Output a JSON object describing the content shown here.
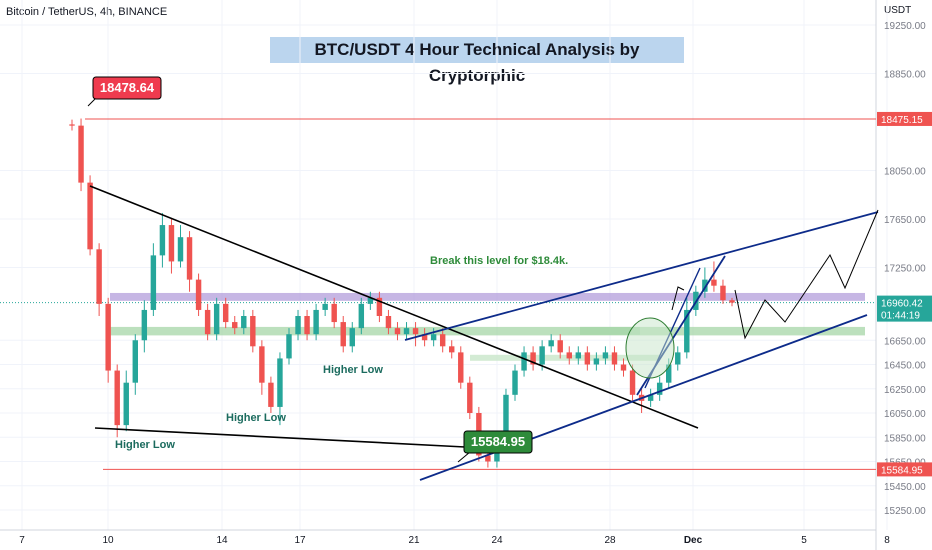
{
  "header": {
    "symbol": "Bitcoin / TetherUS, 4h, BINANCE",
    "currency": "USDT"
  },
  "chart_data": {
    "type": "candlestick",
    "title": "BTC/USDT 4 Hour Technical Analysis by Cryptorphic",
    "y_ticks": [
      19250,
      18850,
      18475.15,
      18050,
      17650,
      17250,
      16960.42,
      16650,
      16450,
      16250,
      16050,
      15850,
      15650,
      15584.95,
      15450,
      15250
    ],
    "y_tick_labels": [
      "19250.00",
      "18850.00",
      "18475.15",
      "18050.00",
      "17650.00",
      "17250.00",
      "16960.42",
      "16650.00",
      "16450.00",
      "16250.00",
      "16050.00",
      "15850.00",
      "15650.00",
      "15584.95",
      "15450.00",
      "15250.00"
    ],
    "ylim": [
      15050,
      19350
    ],
    "x_ticks": [
      "7",
      "10",
      "14",
      "17",
      "21",
      "24",
      "28",
      "Dec",
      "5",
      "8"
    ],
    "price_labels": {
      "resistance": "18475.15",
      "support": "15584.95",
      "current": "16960.42",
      "countdown": "01:44:19"
    },
    "callouts": {
      "high": "18478.64",
      "low": "15584.95"
    },
    "annotations": {
      "higher_low_1": "Higher Low",
      "higher_low_2": "Higher Low",
      "higher_low_3": "Higher Low",
      "break_level": "Break this level for $18.4k."
    },
    "levels": {
      "resistance": 18475.15,
      "support": 15584.95,
      "purple_zone": [
        16975,
        17040
      ],
      "green_zone": [
        16690,
        16760
      ],
      "current": 16960.42
    },
    "candles": [
      [
        18430,
        18420,
        18470,
        18380
      ],
      [
        18420,
        17950,
        18478.64,
        17880
      ],
      [
        17950,
        17400,
        18010,
        17350
      ],
      [
        17400,
        16950,
        17450,
        16850
      ],
      [
        16950,
        16400,
        17000,
        16300
      ],
      [
        16400,
        15950,
        16450,
        15850
      ],
      [
        15950,
        16300,
        16400,
        15900
      ],
      [
        16300,
        16650,
        16700,
        16200
      ],
      [
        16650,
        16900,
        16980,
        16550
      ],
      [
        16900,
        17350,
        17450,
        16850
      ],
      [
        17350,
        17600,
        17700,
        17250
      ],
      [
        17600,
        17300,
        17650,
        17200
      ],
      [
        17300,
        17500,
        17600,
        17250
      ],
      [
        17500,
        17150,
        17550,
        17050
      ],
      [
        17150,
        16900,
        17200,
        16850
      ],
      [
        16900,
        16700,
        16950,
        16650
      ],
      [
        16700,
        16950,
        17000,
        16650
      ],
      [
        16950,
        16800,
        17000,
        16750
      ],
      [
        16800,
        16750,
        16850,
        16700
      ],
      [
        16750,
        16850,
        16900,
        16700
      ],
      [
        16850,
        16600,
        16900,
        16550
      ],
      [
        16600,
        16300,
        16650,
        16200
      ],
      [
        16300,
        16100,
        16350,
        16050
      ],
      [
        16100,
        16500,
        16550,
        15950
      ],
      [
        16500,
        16700,
        16750,
        16450
      ],
      [
        16700,
        16850,
        16900,
        16650
      ],
      [
        16850,
        16700,
        16900,
        16650
      ],
      [
        16700,
        16900,
        16950,
        16650
      ],
      [
        16900,
        16950,
        17000,
        16850
      ],
      [
        16950,
        16800,
        17000,
        16750
      ],
      [
        16800,
        16600,
        16850,
        16550
      ],
      [
        16600,
        16750,
        16800,
        16550
      ],
      [
        16750,
        16950,
        17000,
        16700
      ],
      [
        16950,
        17000,
        17050,
        16900
      ],
      [
        17000,
        16850,
        17050,
        16800
      ],
      [
        16850,
        16750,
        16900,
        16700
      ],
      [
        16750,
        16700,
        16800,
        16650
      ],
      [
        16700,
        16750,
        16800,
        16650
      ],
      [
        16750,
        16700,
        16800,
        16600
      ],
      [
        16700,
        16650,
        16750,
        16600
      ],
      [
        16650,
        16700,
        16750,
        16600
      ],
      [
        16700,
        16600,
        16750,
        16550
      ],
      [
        16600,
        16550,
        16650,
        16500
      ],
      [
        16550,
        16300,
        16600,
        16250
      ],
      [
        16300,
        16050,
        16350,
        16000
      ],
      [
        16050,
        15700,
        16100,
        15650
      ],
      [
        15700,
        15650,
        15750,
        15600
      ],
      [
        15650,
        15800,
        15850,
        15600
      ],
      [
        15800,
        16200,
        16250,
        15750
      ],
      [
        16200,
        16400,
        16450,
        16150
      ],
      [
        16400,
        16550,
        16600,
        16350
      ],
      [
        16550,
        16450,
        16600,
        16400
      ],
      [
        16450,
        16600,
        16650,
        16400
      ],
      [
        16600,
        16650,
        16700,
        16550
      ],
      [
        16650,
        16550,
        16700,
        16500
      ],
      [
        16550,
        16500,
        16600,
        16450
      ],
      [
        16500,
        16550,
        16600,
        16450
      ],
      [
        16550,
        16450,
        16600,
        16400
      ],
      [
        16450,
        16500,
        16550,
        16400
      ],
      [
        16500,
        16550,
        16600,
        16450
      ],
      [
        16550,
        16450,
        16600,
        16400
      ],
      [
        16450,
        16400,
        16500,
        16350
      ],
      [
        16400,
        16200,
        16450,
        16150
      ],
      [
        16200,
        16150,
        16250,
        16050
      ],
      [
        16150,
        16200,
        16250,
        16100
      ],
      [
        16200,
        16300,
        16350,
        16150
      ],
      [
        16300,
        16450,
        16500,
        16250
      ],
      [
        16450,
        16550,
        16600,
        16400
      ],
      [
        16550,
        16900,
        17000,
        16500
      ],
      [
        16900,
        17050,
        17100,
        16850
      ],
      [
        17050,
        17150,
        17250,
        17000
      ],
      [
        17150,
        17100,
        17300,
        17050
      ],
      [
        17100,
        16980,
        17150,
        16950
      ],
      [
        16980,
        16960.42,
        17000,
        16930
      ]
    ],
    "channel_upper": [
      [
        405,
        340
      ],
      [
        878,
        212
      ]
    ],
    "channel_lower": [
      [
        420,
        480
      ],
      [
        867,
        315
      ]
    ],
    "desc_trend": [
      [
        90,
        186
      ],
      [
        698,
        428
      ]
    ],
    "low_trend": [
      [
        95,
        428
      ],
      [
        465,
        447
      ]
    ],
    "steep_channel": [
      [
        637,
        395
      ],
      [
        725,
        256
      ]
    ],
    "projection": [
      [
        735,
        290
      ],
      [
        745,
        338
      ],
      [
        765,
        300
      ],
      [
        785,
        322
      ],
      [
        830,
        255
      ],
      [
        845,
        288
      ],
      [
        878,
        210
      ]
    ]
  }
}
